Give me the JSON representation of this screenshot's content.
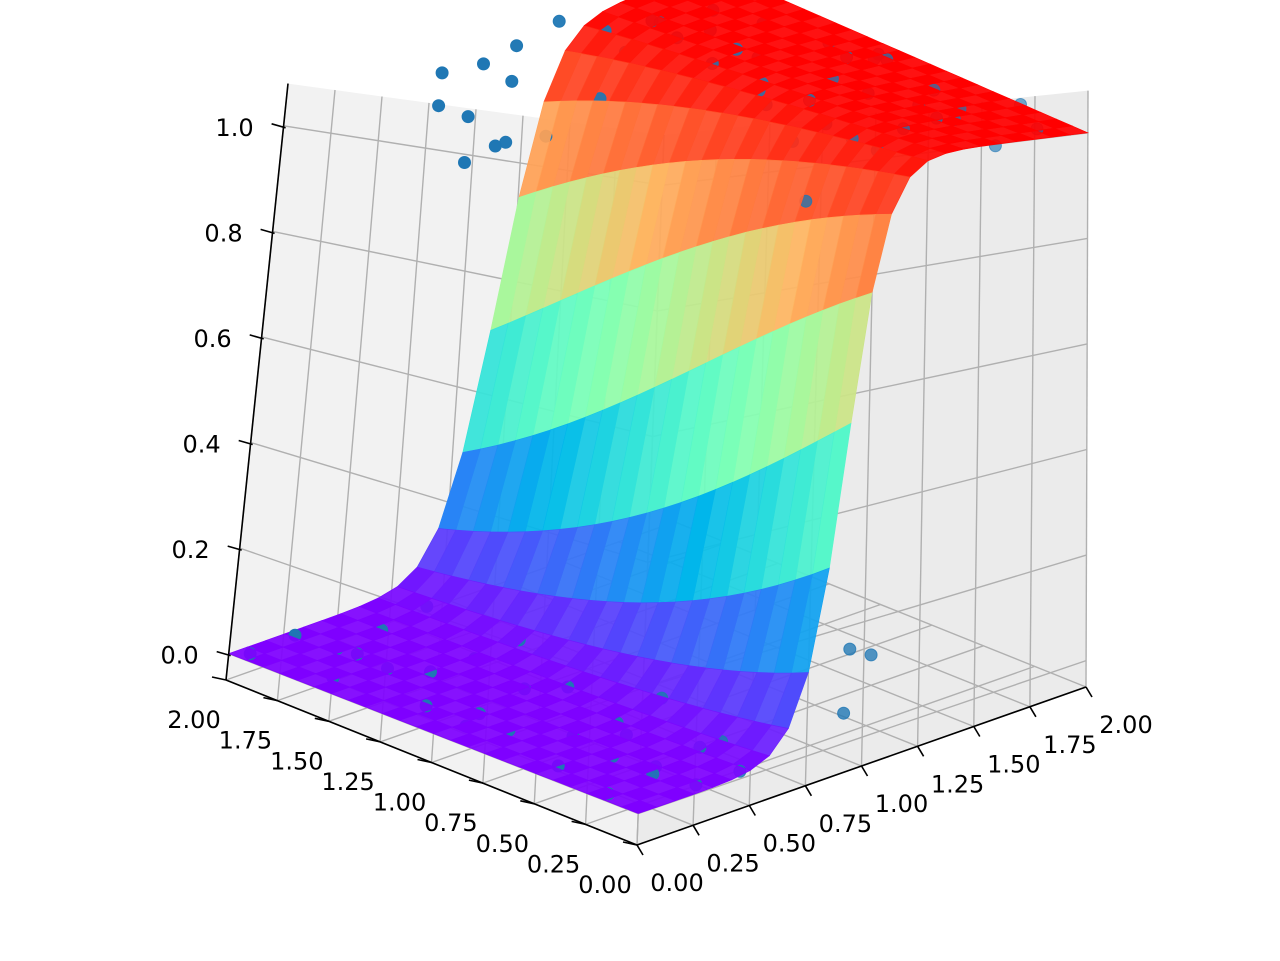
{
  "chart_data": {
    "type": "surface3d",
    "title": "",
    "surface": {
      "function": "1/(1+exp(-12*(x - 0.9 - 0.1*y)))",
      "x_range": [
        0,
        2
      ],
      "y_range": [
        0,
        2
      ],
      "colormap": "rainbow"
    },
    "scatter_color": "#1f77b4",
    "scatter": [
      [
        1.05,
        1.95,
        1.0
      ],
      [
        1.2,
        1.9,
        1.03
      ],
      [
        1.35,
        1.82,
        1.0
      ],
      [
        1.6,
        1.85,
        0.98
      ],
      [
        1.75,
        1.7,
        1.0
      ],
      [
        1.9,
        1.6,
        0.97
      ],
      [
        1.4,
        1.5,
        1.02
      ],
      [
        1.55,
        1.35,
        1.0
      ],
      [
        1.7,
        1.4,
        0.96
      ],
      [
        1.85,
        1.2,
        1.0
      ],
      [
        1.95,
        1.05,
        0.99
      ],
      [
        1.3,
        1.2,
        1.02
      ],
      [
        1.45,
        1.1,
        0.98
      ],
      [
        1.6,
        0.9,
        1.0
      ],
      [
        1.75,
        0.85,
        1.03
      ],
      [
        1.9,
        0.7,
        0.98
      ],
      [
        1.2,
        0.8,
        1.0
      ],
      [
        1.35,
        0.65,
        0.97
      ],
      [
        1.5,
        0.6,
        1.02
      ],
      [
        1.65,
        0.5,
        1.0
      ],
      [
        1.8,
        0.45,
        0.99
      ],
      [
        1.95,
        0.3,
        1.01
      ],
      [
        1.25,
        0.4,
        0.98
      ],
      [
        1.4,
        0.3,
        1.0
      ],
      [
        1.55,
        0.2,
        1.02
      ],
      [
        1.7,
        0.15,
        0.97
      ],
      [
        1.85,
        0.1,
        1.0
      ],
      [
        1.1,
        0.1,
        1.0
      ],
      [
        1.15,
        0.6,
        0.96
      ],
      [
        1.05,
        1.5,
        0.95
      ],
      [
        1.0,
        1.0,
        0.92
      ],
      [
        0.95,
        0.3,
        0.9
      ],
      [
        1.25,
        1.6,
        1.0
      ],
      [
        1.5,
        1.7,
        1.01
      ],
      [
        1.65,
        1.6,
        0.99
      ],
      [
        1.8,
        1.05,
        1.0
      ],
      [
        1.3,
        0.95,
        1.0
      ],
      [
        1.45,
        0.85,
        0.98
      ],
      [
        1.6,
        0.35,
        1.0
      ],
      [
        1.9,
        0.95,
        1.0
      ],
      [
        0.05,
        1.95,
        0.0
      ],
      [
        0.2,
        1.9,
        0.02
      ],
      [
        0.35,
        1.85,
        -0.02
      ],
      [
        0.5,
        1.8,
        0.0
      ],
      [
        0.65,
        1.75,
        0.03
      ],
      [
        0.1,
        1.6,
        0.0
      ],
      [
        0.25,
        1.5,
        0.01
      ],
      [
        0.4,
        1.45,
        -0.01
      ],
      [
        0.55,
        1.4,
        0.0
      ],
      [
        0.7,
        1.35,
        0.02
      ],
      [
        0.15,
        1.2,
        0.0
      ],
      [
        0.3,
        1.1,
        -0.02
      ],
      [
        0.45,
        1.05,
        0.01
      ],
      [
        0.6,
        1.0,
        0.0
      ],
      [
        0.05,
        0.9,
        0.02
      ],
      [
        0.2,
        0.85,
        0.0
      ],
      [
        0.35,
        0.7,
        -0.01
      ],
      [
        0.5,
        0.65,
        0.0
      ],
      [
        0.65,
        0.6,
        0.03
      ],
      [
        0.1,
        0.5,
        0.0
      ],
      [
        0.25,
        0.4,
        0.01
      ],
      [
        0.4,
        0.35,
        -0.02
      ],
      [
        0.55,
        0.3,
        0.0
      ],
      [
        0.05,
        0.2,
        0.0
      ],
      [
        0.2,
        0.15,
        0.02
      ],
      [
        0.35,
        0.1,
        -0.01
      ],
      [
        0.5,
        0.05,
        0.0
      ],
      [
        0.3,
        1.7,
        0.0
      ],
      [
        0.45,
        0.55,
        0.0
      ],
      [
        0.6,
        0.25,
        0.01
      ],
      [
        0.15,
        1.05,
        1.0
      ],
      [
        0.1,
        1.15,
        0.97
      ],
      [
        0.7,
        1.95,
        1.0
      ],
      [
        0.75,
        1.85,
        0.92
      ],
      [
        0.8,
        1.7,
        0.88
      ],
      [
        0.85,
        1.55,
        0.9
      ],
      [
        0.65,
        1.9,
        0.95
      ],
      [
        0.85,
        1.9,
        1.0
      ],
      [
        0.9,
        1.8,
        0.97
      ],
      [
        1.4,
        0.5,
        0.03
      ],
      [
        1.45,
        0.45,
        0.02
      ],
      [
        1.1,
        0.2,
        0.0
      ]
    ],
    "xlim": [
      0,
      2
    ],
    "ylim": [
      0,
      2
    ],
    "zlim": [
      -0.05,
      1.08
    ],
    "x_ticks": [
      "0.00",
      "0.25",
      "0.50",
      "0.75",
      "1.00",
      "1.25",
      "1.50",
      "1.75",
      "2.00"
    ],
    "y_ticks": [
      "0.00",
      "0.25",
      "0.50",
      "0.75",
      "1.00",
      "1.25",
      "1.50",
      "1.75",
      "2.00"
    ],
    "z_ticks": [
      "0.0",
      "0.2",
      "0.4",
      "0.6",
      "0.8",
      "1.0"
    ],
    "grid": true,
    "xlabel": "",
    "ylabel": "",
    "zlabel": ""
  }
}
